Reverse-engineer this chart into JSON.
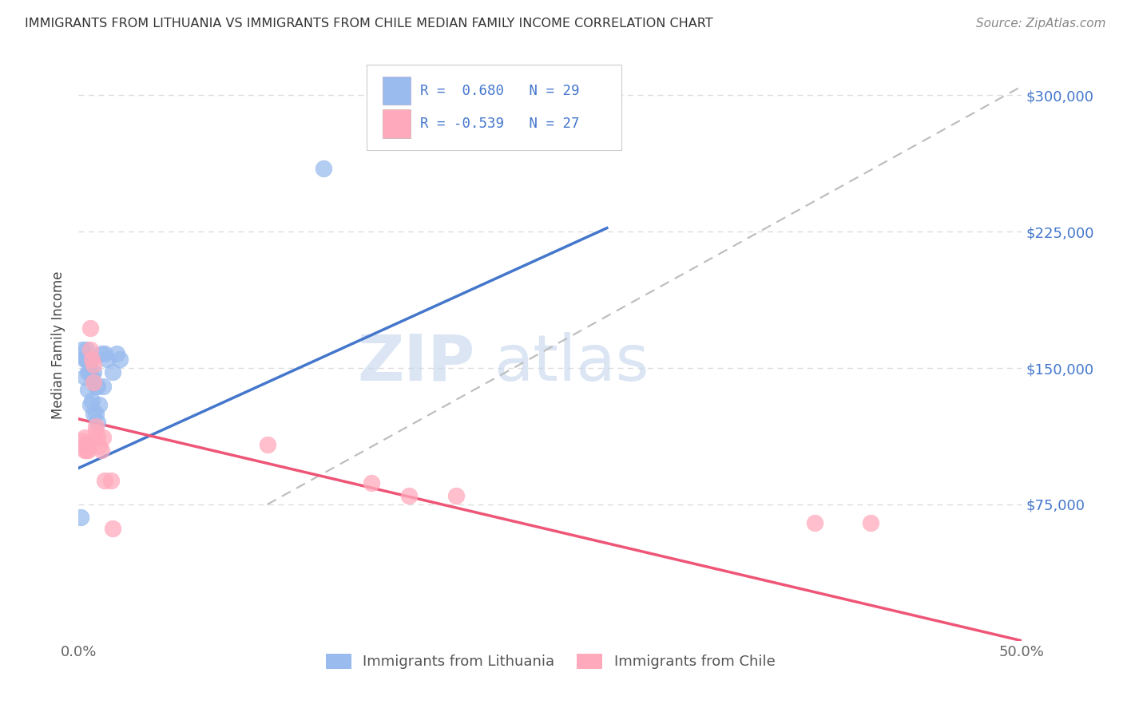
{
  "title": "IMMIGRANTS FROM LITHUANIA VS IMMIGRANTS FROM CHILE MEDIAN FAMILY INCOME CORRELATION CHART",
  "source": "Source: ZipAtlas.com",
  "ylabel": "Median Family Income",
  "xlim": [
    0.0,
    0.5
  ],
  "ylim": [
    0,
    325000
  ],
  "xticks": [
    0.0,
    0.1,
    0.2,
    0.3,
    0.4,
    0.5
  ],
  "xticklabels": [
    "0.0%",
    "",
    "",
    "",
    "",
    "50.0%"
  ],
  "ytick_positions": [
    75000,
    150000,
    225000,
    300000
  ],
  "ytick_labels": [
    "$75,000",
    "$150,000",
    "$225,000",
    "$300,000"
  ],
  "lithuania_R": 0.68,
  "lithuania_N": 29,
  "chile_R": -0.539,
  "chile_N": 27,
  "lithuania_color": "#99BBEE",
  "chile_color": "#FFAABC",
  "lithuania_line_color": "#4477CC",
  "chile_line_color": "#EE5577",
  "watermark_zip": "ZIP",
  "watermark_atlas": "atlas",
  "watermark_color_zip": "#C5D5EE",
  "watermark_color_atlas": "#C5D5EE",
  "background_color": "#FFFFFF",
  "grid_color": "#DDDDDD",
  "legend_label_blue": "Immigrants from Lithuania",
  "legend_label_pink": "Immigrants from Chile",
  "lithuania_x": [
    0.001,
    0.002,
    0.003,
    0.003,
    0.004,
    0.004,
    0.005,
    0.005,
    0.005,
    0.006,
    0.006,
    0.006,
    0.007,
    0.007,
    0.008,
    0.008,
    0.009,
    0.009,
    0.01,
    0.01,
    0.011,
    0.012,
    0.013,
    0.014,
    0.015,
    0.018,
    0.02,
    0.13,
    0.022
  ],
  "lithuania_y": [
    68000,
    160000,
    155000,
    145000,
    160000,
    155000,
    155000,
    148000,
    138000,
    155000,
    148000,
    130000,
    145000,
    132000,
    148000,
    125000,
    140000,
    125000,
    140000,
    120000,
    130000,
    158000,
    140000,
    158000,
    155000,
    148000,
    158000,
    260000,
    155000
  ],
  "chile_x": [
    0.002,
    0.003,
    0.003,
    0.004,
    0.004,
    0.005,
    0.005,
    0.006,
    0.006,
    0.007,
    0.008,
    0.008,
    0.009,
    0.009,
    0.01,
    0.011,
    0.012,
    0.013,
    0.014,
    0.017,
    0.018,
    0.1,
    0.155,
    0.175,
    0.2,
    0.39,
    0.42
  ],
  "chile_y": [
    110000,
    112000,
    105000,
    108000,
    105000,
    108000,
    105000,
    172000,
    160000,
    155000,
    152000,
    142000,
    118000,
    115000,
    112000,
    107000,
    105000,
    112000,
    88000,
    88000,
    62000,
    108000,
    87000,
    80000,
    80000,
    65000,
    65000
  ],
  "lith_line_x0": 0.0,
  "lith_line_y0": 95000,
  "lith_line_x1": 0.28,
  "lith_line_y1": 227000,
  "chile_line_x0": 0.0,
  "chile_line_y0": 122000,
  "chile_line_x1": 0.5,
  "chile_line_y1": 0,
  "dash_line_x0": 0.1,
  "dash_line_y0": 75000,
  "dash_line_x1": 0.5,
  "dash_line_y1": 305000
}
